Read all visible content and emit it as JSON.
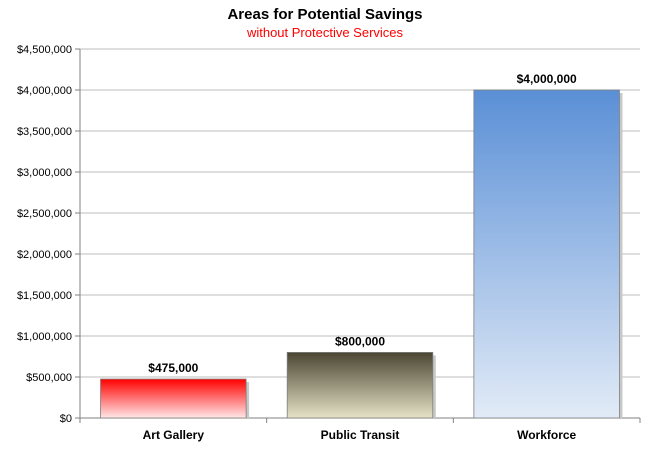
{
  "chart_data": {
    "type": "bar",
    "title": "Areas for Potential Savings",
    "subtitle": "without Protective Services",
    "subtitle_color": "#ff0000",
    "categories": [
      "Art Gallery",
      "Public Transit",
      "Workforce"
    ],
    "values": [
      475000,
      800000,
      4000000
    ],
    "data_labels": [
      "$475,000",
      "$800,000",
      "$4,000,000"
    ],
    "yticks": [
      "$0",
      "$500,000",
      "$1,000,000",
      "$1,500,000",
      "$2,000,000",
      "$2,500,000",
      "$3,000,000",
      "$3,500,000",
      "$4,000,000",
      "$4,500,000"
    ],
    "ylim": [
      0,
      4500000
    ],
    "grid": true,
    "legend": "none",
    "bar_colors": [
      {
        "top": "#ff0000",
        "bottom": "#ffe8e8"
      },
      {
        "top": "#4a4632",
        "bottom": "#e6e2c6"
      },
      {
        "top": "#5a8fd6",
        "bottom": "#e2ebf7"
      }
    ]
  }
}
